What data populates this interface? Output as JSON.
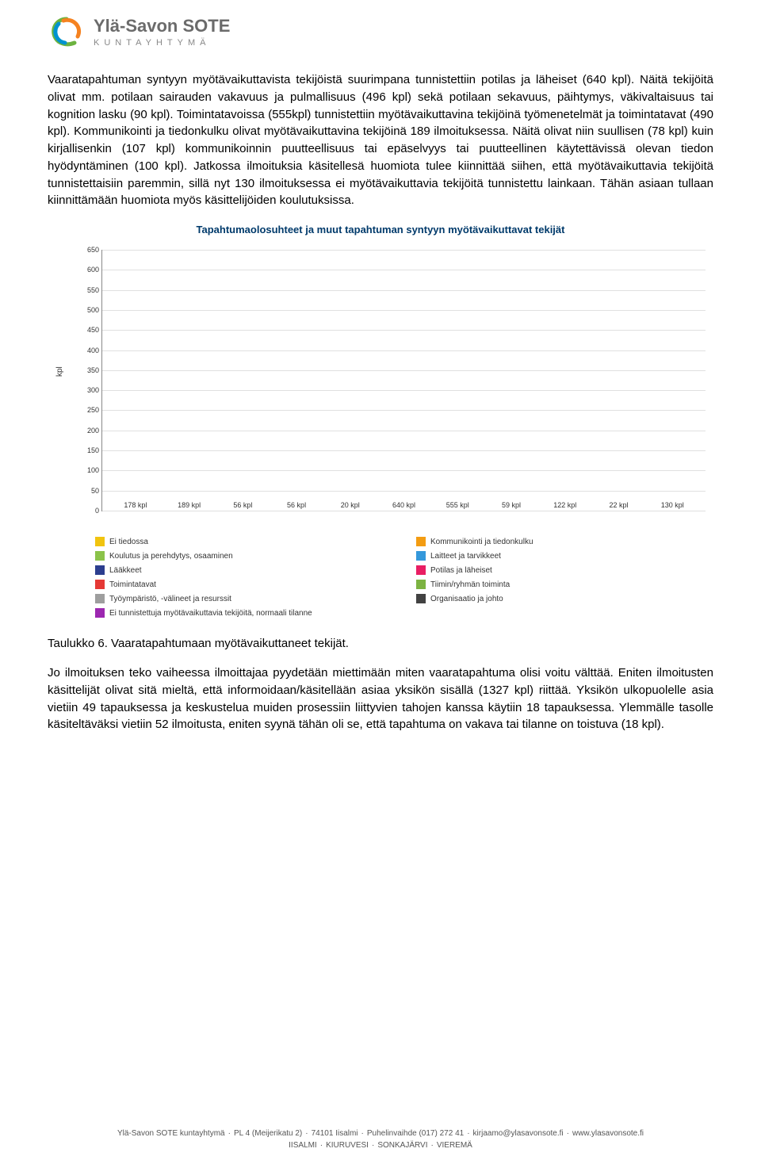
{
  "header": {
    "org_name": "Ylä-Savon SOTE",
    "org_sub": "KUNTAYHTYMÄ",
    "logo_colors": {
      "orange": "#f58220",
      "blue": "#0093d0",
      "green": "#6cb33f"
    }
  },
  "paragraph1": "Vaaratapahtuman syntyyn myötävaikuttavista tekijöistä suurimpana tunnistettiin potilas ja läheiset (640 kpl). Näitä tekijöitä olivat mm. potilaan sairauden vakavuus ja pulmallisuus (496 kpl) sekä potilaan sekavuus, päihtymys, väkivaltaisuus tai kognition lasku (90 kpl). Toimintatavoissa (555kpl) tunnistettiin myötävaikuttavina tekijöinä työmenetelmät ja toimintatavat (490 kpl). Kommunikointi ja tiedonkulku olivat myötävaikuttavina tekijöinä 189 ilmoituksessa. Näitä olivat niin suullisen (78 kpl) kuin kirjallisenkin (107 kpl) kommunikoinnin puutteellisuus tai epäselvyys tai puutteellinen käytettävissä olevan tiedon hyödyntäminen (100 kpl). Jatkossa ilmoituksia käsitellesä huomiota tulee kiinnittää siihen, että myötävaikuttavia tekijöitä tunnistettaisiin paremmin, sillä nyt 130 ilmoituksessa ei myötävaikuttavia tekijöitä tunnistettu lainkaan. Tähän asiaan tullaan kiinnittämään huomiota myös käsittelijöiden koulutuksissa.",
  "chart": {
    "title": "Tapahtumaolosuhteet ja muut tapahtuman syntyyn myötävaikuttavat tekijät",
    "ylabel": "kpl",
    "ylim": [
      0,
      650
    ],
    "ytick_step": 50,
    "background_color": "#ffffff",
    "grid_color": "#e0e0e0",
    "bars": [
      {
        "label": "178 kpl",
        "value": 178,
        "color": "#f1c40f",
        "name": "Ei tiedossa"
      },
      {
        "label": "189 kpl",
        "value": 189,
        "color": "#f39c12",
        "name": "Kommunikointi ja tiedonkulku"
      },
      {
        "label": "56 kpl",
        "value": 56,
        "color": "#8bc34a",
        "name": "Koulutus ja perehdytys, osaaminen"
      },
      {
        "label": "56 kpl",
        "value": 56,
        "color": "#3498db",
        "name": "Laitteet ja tarvikkeet"
      },
      {
        "label": "20 kpl",
        "value": 20,
        "color": "#2c3e8f",
        "name": "Lääkkeet"
      },
      {
        "label": "640 kpl",
        "value": 640,
        "color": "#e91e63",
        "name": "Potilas ja läheiset"
      },
      {
        "label": "555 kpl",
        "value": 555,
        "color": "#e53935",
        "name": "Toimintatavat"
      },
      {
        "label": "59 kpl",
        "value": 59,
        "color": "#7cb342",
        "name": "Tiimin/ryhmän toiminta"
      },
      {
        "label": "122 kpl",
        "value": 122,
        "color": "#9e9e9e",
        "name": "Työympäristö, -välineet ja resurssit"
      },
      {
        "label": "22 kpl",
        "value": 22,
        "color": "#424242",
        "name": "Organisaatio ja johto"
      },
      {
        "label": "130 kpl",
        "value": 130,
        "color": "#9c27b0",
        "name": "Ei tunnistettuja myötävaikuttavia tekijöitä, normaali tilanne"
      }
    ],
    "legend": [
      {
        "color": "#f1c40f",
        "label": "Ei tiedossa"
      },
      {
        "color": "#f39c12",
        "label": "Kommunikointi ja tiedonkulku"
      },
      {
        "color": "#8bc34a",
        "label": "Koulutus ja perehdytys, osaaminen"
      },
      {
        "color": "#3498db",
        "label": "Laitteet ja tarvikkeet"
      },
      {
        "color": "#2c3e8f",
        "label": "Lääkkeet"
      },
      {
        "color": "#e91e63",
        "label": "Potilas ja läheiset"
      },
      {
        "color": "#e53935",
        "label": "Toimintatavat"
      },
      {
        "color": "#7cb342",
        "label": "Tiimin/ryhmän toiminta"
      },
      {
        "color": "#9e9e9e",
        "label": "Työympäristö, -välineet ja resurssit"
      },
      {
        "color": "#424242",
        "label": "Organisaatio ja johto"
      },
      {
        "color": "#9c27b0",
        "label": "Ei tunnistettuja myötävaikuttavia tekijöitä, normaali tilanne"
      }
    ]
  },
  "caption": "Taulukko 6. Vaaratapahtumaan myötävaikuttaneet tekijät.",
  "paragraph2": "Jo ilmoituksen teko vaiheessa ilmoittajaa pyydetään miettimään miten vaaratapahtuma olisi voitu välttää. Eniten ilmoitusten käsittelijät olivat sitä mieltä, että informoidaan/käsitellään asiaa yksikön sisällä (1327 kpl) riittää. Yksikön ulkopuolelle asia vietiin 49 tapauksessa ja keskustelua muiden prosessiin liittyvien tahojen kanssa käytiin 18 tapauksessa. Ylemmälle tasolle käsiteltäväksi vietiin 52 ilmoitusta, eniten syynä tähän oli se, että tapahtuma on vakava tai tilanne on toistuva (18 kpl).",
  "footer": {
    "line1_parts": [
      "Ylä-Savon SOTE kuntayhtymä",
      "PL 4 (Meijerikatu 2)",
      "74101 Iisalmi",
      "Puhelinvaihde (017) 272 41",
      "kirjaamo@ylasavonsote.fi",
      "www.ylasavonsote.fi"
    ],
    "line2_parts": [
      "IISALMI",
      "KIURUVESI",
      "SONKAJÄRVI",
      "VIEREMÄ"
    ]
  }
}
